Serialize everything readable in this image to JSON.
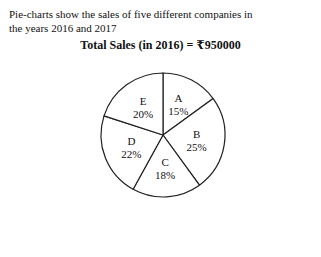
{
  "chart_data": {
    "type": "pie",
    "subtitle": "Pie-charts show the sales of five different companies in\nthe years 2016 and 2017",
    "title": "Total Sales (in 2016) = ₹950000",
    "categories": [
      "A",
      "B",
      "C",
      "D",
      "E"
    ],
    "values": [
      15,
      25,
      18,
      22,
      20
    ],
    "value_labels": [
      "15%",
      "25%",
      "18%",
      "22%",
      "20%"
    ],
    "color": "#ffffff",
    "data_labels": true
  }
}
